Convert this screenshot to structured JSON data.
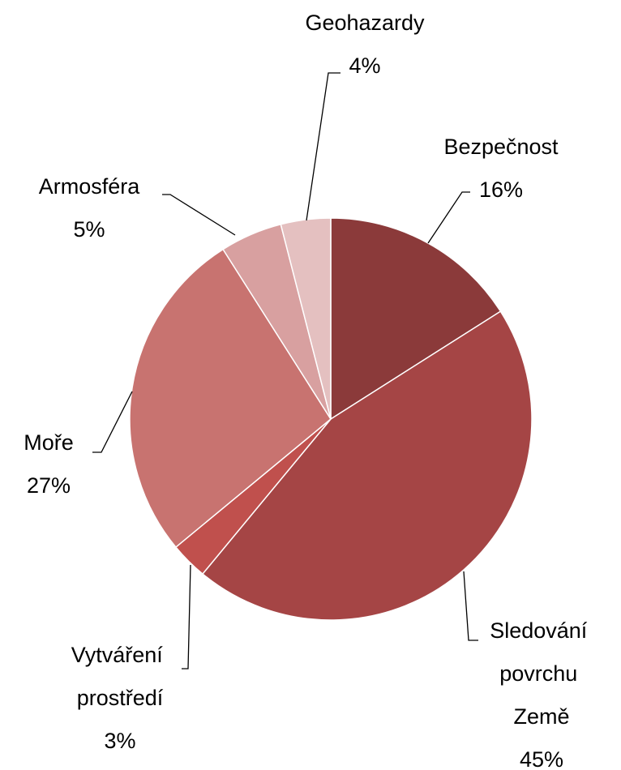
{
  "chart_data": {
    "type": "pie",
    "categories": [
      "Bezpečnost",
      "Sledování povrchu Země",
      "Vytváření prostředí",
      "Moře",
      "Armosféra",
      "Geohazardy"
    ],
    "values": [
      16,
      45,
      3,
      27,
      5,
      4
    ],
    "value_labels": [
      "16%",
      "45%",
      "3%",
      "27%",
      "5%",
      "4%"
    ],
    "colors": [
      "#8b3a3a",
      "#a54545",
      "#c0504d",
      "#c87370",
      "#d8a0a0",
      "#e4c0c0"
    ]
  }
}
